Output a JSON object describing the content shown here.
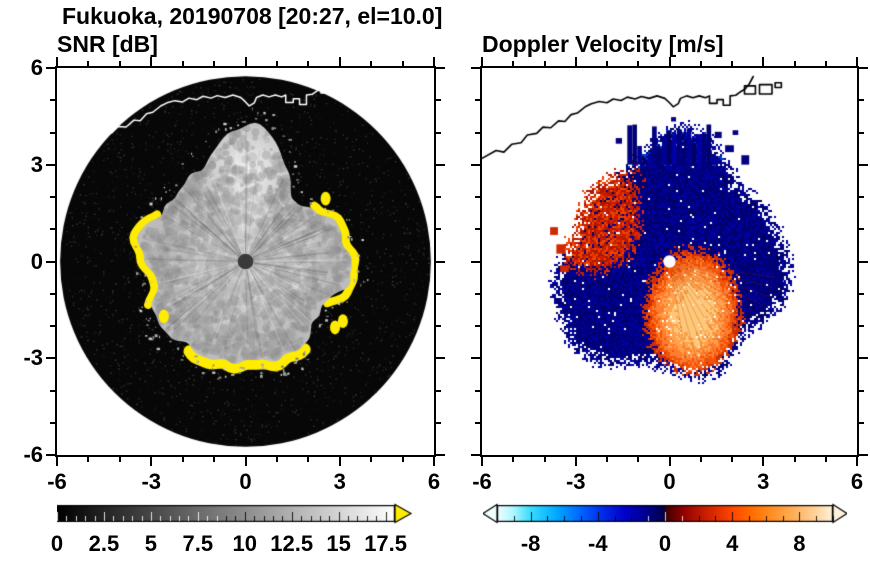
{
  "title": "Fukuoka, 20190708 [20:27, el=10.0]",
  "panels": {
    "snr": {
      "subtitle": "SNR [dB]",
      "x_tick_labels": [
        "-6",
        "-3",
        "0",
        "3",
        "6"
      ],
      "y_tick_labels": [
        "6",
        "3",
        "0",
        "-3",
        "-6"
      ],
      "axis_range": [
        -6,
        6
      ]
    },
    "doppler": {
      "subtitle": "Doppler Velocity [m/s]",
      "x_tick_labels": [
        "-6",
        "-3",
        "0",
        "3",
        "6"
      ],
      "axis_range": [
        -6,
        6
      ]
    }
  },
  "colorbars": {
    "snr": {
      "tick_labels": [
        "0",
        "2.5",
        "5",
        "7.5",
        "10",
        "12.5",
        "15",
        "17.5"
      ],
      "values": [
        0,
        2.5,
        5,
        7.5,
        10,
        12.5,
        15,
        17.5
      ],
      "range": [
        0,
        18
      ],
      "colormap": "grayscale",
      "over_arrow_color": "#FFEC00"
    },
    "doppler": {
      "tick_labels": [
        "-8",
        "-4",
        "0",
        "4",
        "8"
      ],
      "values": [
        -8,
        -4,
        0,
        4,
        8
      ],
      "range": [
        -10,
        10
      ],
      "stops": [
        [
          0,
          "#F2FFFF"
        ],
        [
          0.05,
          "#AAF6FF"
        ],
        [
          0.1,
          "#38DCFF"
        ],
        [
          0.18,
          "#00A6FF"
        ],
        [
          0.25,
          "#0064FF"
        ],
        [
          0.31,
          "#0030E8"
        ],
        [
          0.38,
          "#0000CC"
        ],
        [
          0.45,
          "#000088"
        ],
        [
          0.497,
          "#000048"
        ],
        [
          0.503,
          "#3C0000"
        ],
        [
          0.55,
          "#8C0000"
        ],
        [
          0.62,
          "#C81E00"
        ],
        [
          0.7,
          "#FF4600"
        ],
        [
          0.76,
          "#FF6E00"
        ],
        [
          0.82,
          "#FF9026"
        ],
        [
          0.88,
          "#FFAE56"
        ],
        [
          0.95,
          "#FFD49E"
        ],
        [
          1,
          "#FFF2DC"
        ]
      ]
    }
  },
  "coastline": {
    "points": [
      [
        -6,
        3.3
      ],
      [
        -5.55,
        3.55
      ],
      [
        -5.3,
        3.5
      ],
      [
        -5.05,
        3.75
      ],
      [
        -4.75,
        3.8
      ],
      [
        -4.55,
        4.05
      ],
      [
        -4.25,
        4.1
      ],
      [
        -4.05,
        4.3
      ],
      [
        -3.8,
        4.28
      ],
      [
        -3.55,
        4.5
      ],
      [
        -3.35,
        4.48
      ],
      [
        -3.15,
        4.7
      ],
      [
        -2.95,
        4.75
      ],
      [
        -2.7,
        4.95
      ],
      [
        -2.5,
        5.05
      ],
      [
        -2.25,
        5.12
      ],
      [
        -2,
        5.08
      ],
      [
        -1.8,
        5.2
      ],
      [
        -1.55,
        5.15
      ],
      [
        -1.35,
        5.26
      ],
      [
        -1.1,
        5.2
      ],
      [
        -0.9,
        5.28
      ],
      [
        -0.65,
        5.22
      ],
      [
        -0.4,
        5.3
      ],
      [
        -0.15,
        5.22
      ],
      [
        0,
        5.08
      ],
      [
        0.12,
        4.95
      ],
      [
        0.28,
        5.05
      ],
      [
        0.35,
        5.22
      ],
      [
        0.55,
        5.3
      ],
      [
        0.75,
        5.24
      ],
      [
        0.95,
        5.3
      ],
      [
        1.15,
        5.24
      ],
      [
        1.28,
        5.3
      ],
      [
        1.28,
        5.06
      ],
      [
        1.52,
        5.06
      ],
      [
        1.52,
        5.18
      ],
      [
        1.72,
        5.18
      ],
      [
        1.72,
        5
      ],
      [
        1.94,
        5
      ],
      [
        1.94,
        5.3
      ],
      [
        2.12,
        5.32
      ],
      [
        2.3,
        5.45
      ],
      [
        2.42,
        5.52
      ],
      [
        2.55,
        5.68
      ],
      [
        2.68,
        5.92
      ]
    ],
    "boxes": [
      [
        2.4,
        5.62,
        0.35,
        0.26
      ],
      [
        2.88,
        5.66,
        0.4,
        0.3
      ],
      [
        3.38,
        5.72,
        0.2,
        0.15
      ]
    ],
    "snr_color": "#FFFFFF",
    "doppler_color": "#000000"
  },
  "chart_data": [
    {
      "type": "heatmap",
      "title": "SNR [dB]",
      "xlim": [
        -6,
        6
      ],
      "ylim": [
        -6,
        6
      ],
      "x_ticks": [
        -6,
        -3,
        0,
        3,
        6
      ],
      "y_ticks": [
        -6,
        -3,
        0,
        3,
        6
      ],
      "colorbar_range": [
        0,
        17.5
      ],
      "colorbar_ticks": [
        0,
        2.5,
        5,
        7.5,
        10,
        12.5,
        15,
        17.5
      ],
      "colormap": "grayscale, yellow over-range arrow",
      "content": "PPI radar scan: black no-echo disk radius ~5.9 centered on radar; bright gray precipitation echo blob (radius ~2.6-4.4, extending to y~4.4 at top) with radial attenuation streaks; yellow saturated fringes along west, south and east echo edges; small dark blind dot at center; white coastline overlay near top",
      "features": {
        "disk_radius": 5.9,
        "center_dot_radius": 0.25,
        "echo_base_radius": 2.95,
        "echo_top_extent": 4.4,
        "yellow_arcs_deg": [
          [
            -27,
            40,
            0.26
          ],
          [
            152,
            205,
            0.26
          ],
          [
            238,
            305,
            0.38
          ]
        ],
        "yellow_spots": [
          [
            -2.6,
            -1.75
          ],
          [
            2.85,
            -2.1
          ],
          [
            2.55,
            2.0
          ],
          [
            3.1,
            -1.9
          ]
        ]
      }
    },
    {
      "type": "heatmap",
      "title": "Doppler Velocity [m/s]",
      "xlim": [
        -6,
        6
      ],
      "ylim": [
        -6,
        6
      ],
      "x_ticks": [
        -6,
        -3,
        0,
        3,
        6
      ],
      "colorbar_range": [
        -10,
        10
      ],
      "colorbar_ticks": [
        -8,
        -4,
        0,
        4,
        8
      ],
      "colormap": "cyan-blue-navy (negative) / darkred-red-orange-white (positive)",
      "content": "Doppler velocity PPI on white background: mostly dark navy (negative, toward radar) field radius ~3.4-4.4 with ragged speckled edges and vertical strip structure at top; bright orange positive lobe south-southeast of radar; red positive patch on west side with speckled boundary; white radar dot at center; black coastline at top",
      "features": {
        "field_base_radius": 3.45,
        "positive_lobe": {
          "center": [
            0.75,
            -1.65
          ],
          "rx": 1.55,
          "ry": 2.05
        },
        "west_red_patch": {
          "center": [
            -2.45,
            1.35
          ],
          "rx": 1.55,
          "ry": 1.75
        },
        "negative_base_color": "#000080",
        "center_dot_radius": 0.2,
        "top_strips": {
          "x_range": [
            -1.35,
            1.5
          ],
          "y_base": 3.2,
          "max_extra": 1.2
        },
        "top_blocks": [
          [
            1.45,
            4.15,
            0.22,
            0.2
          ],
          [
            1.78,
            3.72,
            0.28,
            0.22
          ],
          [
            -1.72,
            3.95,
            0.2,
            0.18
          ],
          [
            0.05,
            4.62,
            0.16,
            0.14
          ],
          [
            2.02,
            4.2,
            0.18,
            0.15
          ],
          [
            2.3,
            3.4,
            0.25,
            0.3
          ]
        ],
        "right_blocks": [
          [
            3.05,
            0.05,
            0.45,
            0.4
          ],
          [
            3.35,
            -0.35,
            0.3,
            0.3
          ],
          [
            2.95,
            0.6,
            0.3,
            0.28
          ]
        ],
        "left_red_blocks": [
          [
            -3.62,
            0.55,
            0.3,
            0.3
          ],
          [
            -3.82,
            1.1,
            0.25,
            0.25
          ],
          [
            -3.5,
            -0.12,
            0.28,
            0.22
          ]
        ]
      }
    }
  ]
}
